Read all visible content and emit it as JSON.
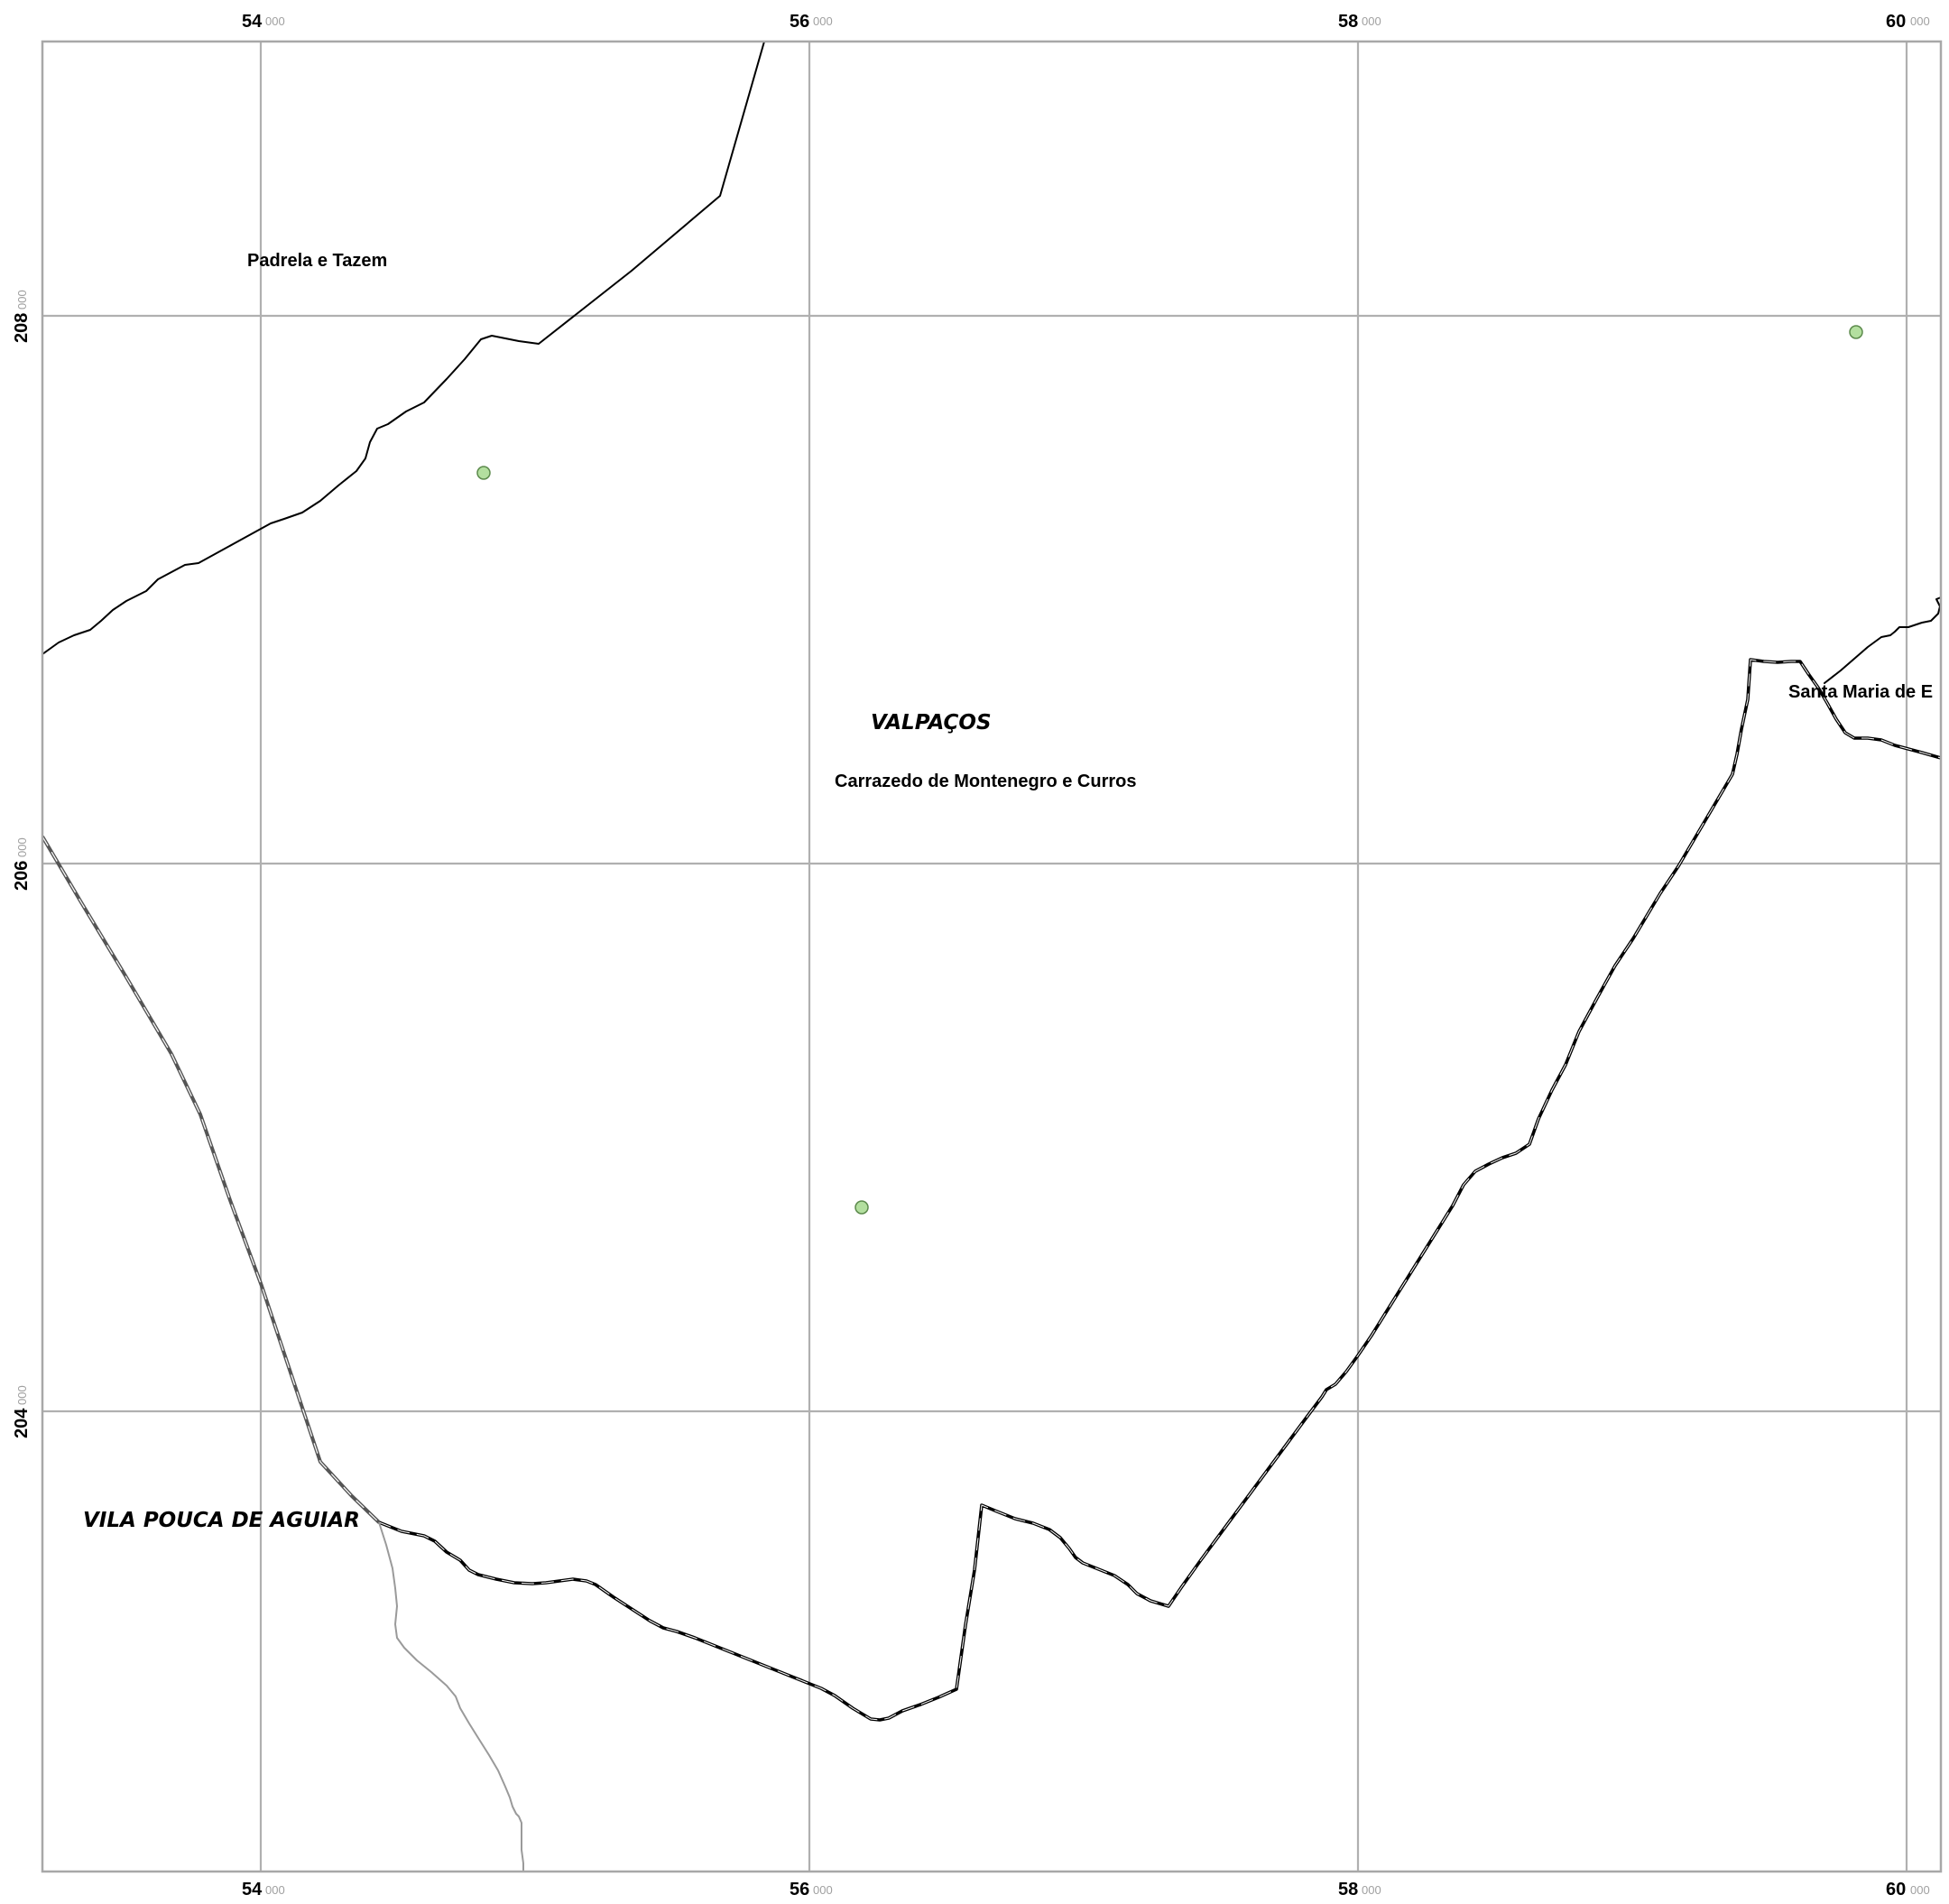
{
  "map": {
    "grid": {
      "x_ticks": [
        {
          "major": "54",
          "minor": "000",
          "value": 54000
        },
        {
          "major": "56",
          "minor": "000",
          "value": 56000
        },
        {
          "major": "58",
          "minor": "000",
          "value": 58000
        },
        {
          "major": "60",
          "minor": "000",
          "value": 60000
        }
      ],
      "y_ticks": [
        {
          "major": "208",
          "minor": "000",
          "value": 208000
        },
        {
          "major": "206",
          "minor": "000",
          "value": 206000
        },
        {
          "major": "204",
          "minor": "000",
          "value": 204000
        }
      ]
    },
    "labels": {
      "parish_padrela": "Padrela e Tazem",
      "parish_carrazedo": "Carrazedo de Montenegro e Curros",
      "parish_santa_maria": "Santa Maria de E",
      "municipality_valpacos": "VALPAÇOS",
      "municipality_vila_pouca": "VILA POUCA DE AGUIAR"
    },
    "colors": {
      "point_fill": "#b3df9f",
      "grid": "#b0b0b0",
      "boundary": "#000000"
    }
  }
}
